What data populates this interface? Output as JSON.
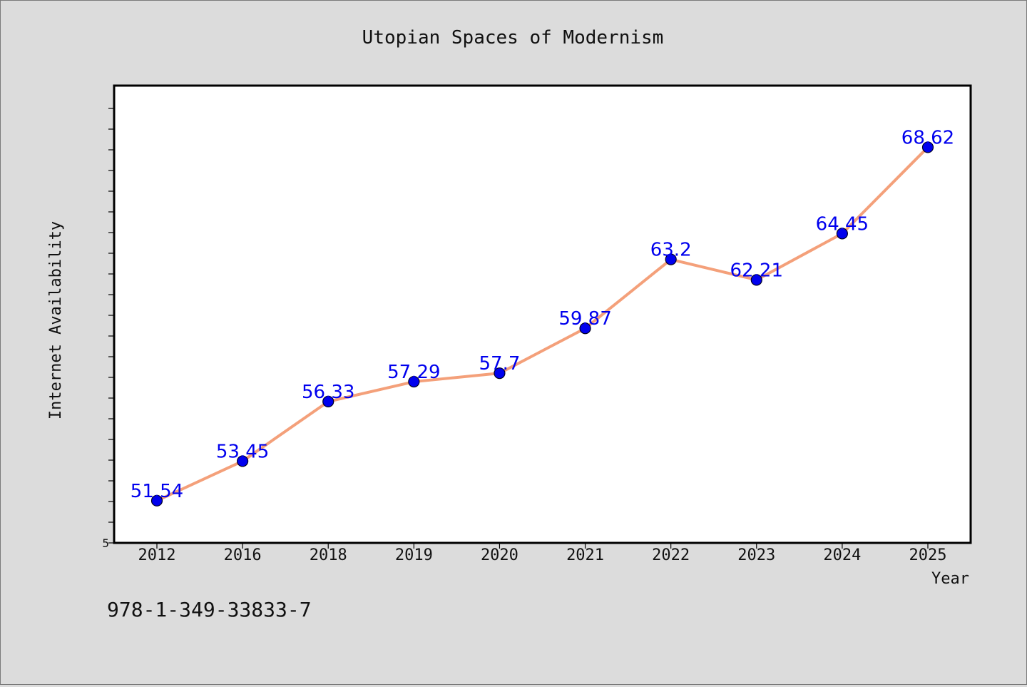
{
  "chart_data": {
    "type": "line",
    "title": "Utopian Spaces of Modernism",
    "xlabel": "Year",
    "ylabel": "Internet Availability",
    "categories": [
      "2012",
      "2016",
      "2018",
      "2019",
      "2020",
      "2021",
      "2022",
      "2023",
      "2024",
      "2025"
    ],
    "series": [
      {
        "values": [
          51.54,
          53.45,
          56.33,
          57.29,
          57.7,
          59.87,
          63.2,
          62.21,
          64.45,
          68.62
        ],
        "data_labels": [
          "51.54",
          "53.45",
          "56.33",
          "57.29",
          "57.7",
          "59.87",
          "63.2",
          "62.21",
          "64.45",
          "68.62"
        ],
        "line_color": "#f4a07a",
        "marker_color": "#0000ee"
      }
    ],
    "ylim": [
      49.5,
      71.6
    ],
    "ytick_labels": [
      {
        "value": 49.5,
        "label": "5"
      }
    ],
    "grid": false,
    "legend": "none"
  },
  "footnote": "978-1-349-33833-7"
}
